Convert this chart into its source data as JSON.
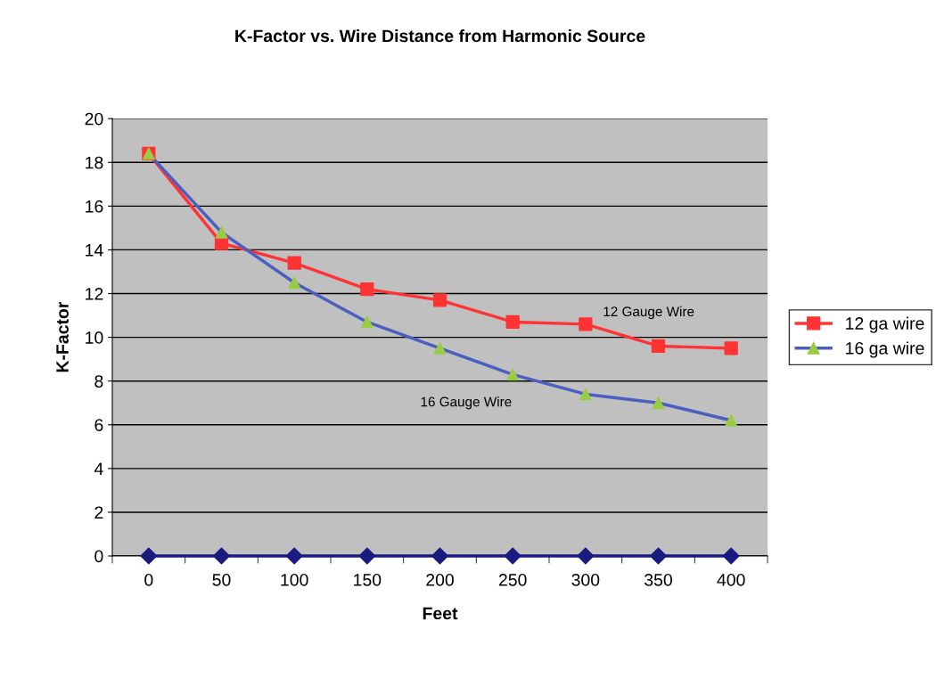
{
  "chart_data": {
    "type": "line",
    "title": "K-Factor vs. Wire Distance from Harmonic Source",
    "xlabel": "Feet",
    "ylabel": "K-Factor",
    "categories": [
      "0",
      "50",
      "100",
      "150",
      "200",
      "250",
      "300",
      "350",
      "400"
    ],
    "series": [
      {
        "name": "12 ga wire",
        "color": "#ff3333",
        "marker": "square",
        "values": [
          18.4,
          14.3,
          13.4,
          12.2,
          11.7,
          10.7,
          10.6,
          9.6,
          9.5
        ]
      },
      {
        "name": "16 ga wire",
        "color": "#4a5fc0",
        "marker": "triangle",
        "colors": [
          "#99cc44",
          "#99cc44",
          "#99cc44",
          "#99cc44",
          "#99cc44",
          "#99cc44",
          "#99cc44",
          "#99cc44",
          "#99cc44"
        ],
        "values": [
          18.4,
          14.8,
          12.5,
          10.7,
          9.5,
          8.3,
          7.4,
          7.0,
          6.2
        ]
      },
      {
        "color": "#1a1a80",
        "marker": "diamond",
        "values": [
          0,
          0,
          0,
          0,
          0,
          0,
          0,
          0,
          0
        ]
      }
    ],
    "annotations": [
      {
        "text": "12 Gauge Wire",
        "x": "300",
        "y": 10.9
      },
      "16 Gauge Wire"
    ],
    "ylim": [
      0,
      20
    ],
    "yticks": [
      0,
      2,
      4,
      6,
      8,
      10,
      12,
      14,
      16,
      18,
      20
    ],
    "grid": "y",
    "legend": "right"
  }
}
